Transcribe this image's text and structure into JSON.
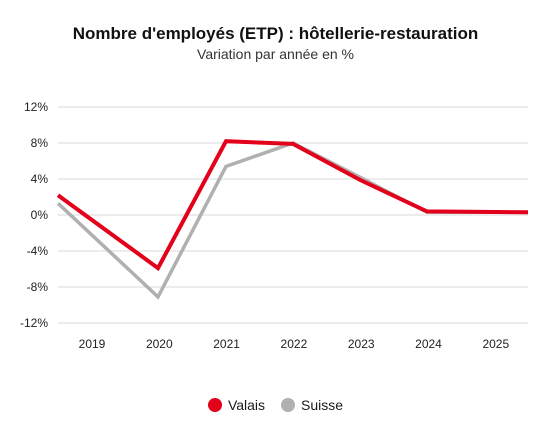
{
  "chart_data": {
    "type": "line",
    "title": "Nombre d'employés (ETP) : hôtellerie-restauration",
    "subtitle": "Variation par année en %",
    "x": [
      "2019",
      "2020",
      "2021",
      "2022",
      "2023",
      "2024",
      "2025"
    ],
    "ylim": [
      -12,
      12
    ],
    "yticks": [
      12,
      8,
      4,
      0,
      -4,
      -8,
      -12
    ],
    "ytick_labels": [
      "12%",
      "8%",
      "4%",
      "0%",
      "-4%",
      "-8%",
      "-12%"
    ],
    "grid": true,
    "legend_position": "bottom",
    "series": [
      {
        "name": "Valais",
        "color": "#e3001b",
        "values": [
          2.2,
          -5.9,
          8.2,
          7.9,
          3.9,
          0.4,
          0.3
        ]
      },
      {
        "name": "Suisse",
        "color": "#b0b0b0",
        "values": [
          1.3,
          -9.1,
          5.4,
          8.0,
          4.2,
          0.3,
          0.3
        ]
      }
    ]
  }
}
